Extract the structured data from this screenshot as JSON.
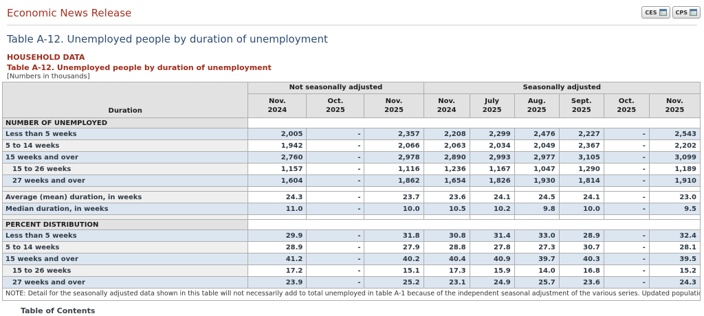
{
  "header": {
    "site_title": "Economic News Release",
    "buttons": [
      {
        "label": "CES",
        "icon": "spreadsheet-icon"
      },
      {
        "label": "CPS",
        "icon": "spreadsheet-icon"
      }
    ]
  },
  "page_title": "Table A-12. Unemployed people by duration of unemployment",
  "subheader": {
    "section_label": "HOUSEHOLD DATA",
    "table_title": "Table A-12. Unemployed people by duration of unemployment",
    "units_note": "[Numbers in thousands]"
  },
  "table": {
    "stub_header": "Duration",
    "groups": [
      {
        "label": "Not seasonally adjusted",
        "span": 3
      },
      {
        "label": "Seasonally adjusted",
        "span": 6
      }
    ],
    "columns": [
      {
        "month": "Nov.",
        "year": "2024"
      },
      {
        "month": "Oct.",
        "year": "2025"
      },
      {
        "month": "Nov.",
        "year": "2025"
      },
      {
        "month": "Nov.",
        "year": "2024"
      },
      {
        "month": "July",
        "year": "2025"
      },
      {
        "month": "Aug.",
        "year": "2025"
      },
      {
        "month": "Sept.",
        "year": "2025"
      },
      {
        "month": "Oct.",
        "year": "2025"
      },
      {
        "month": "Nov.",
        "year": "2025"
      }
    ],
    "rows": [
      {
        "type": "section",
        "label": "NUMBER OF UNEMPLOYED"
      },
      {
        "type": "data",
        "label": "Less than 5 weeks",
        "indent": 0,
        "values": [
          "2,005",
          "-",
          "2,357",
          "2,208",
          "2,299",
          "2,476",
          "2,227",
          "-",
          "2,543"
        ]
      },
      {
        "type": "data",
        "label": "5 to 14 weeks",
        "indent": 0,
        "values": [
          "1,942",
          "-",
          "2,066",
          "2,063",
          "2,034",
          "2,049",
          "2,367",
          "-",
          "2,202"
        ]
      },
      {
        "type": "data",
        "label": "15 weeks and over",
        "indent": 0,
        "values": [
          "2,760",
          "-",
          "2,978",
          "2,890",
          "2,993",
          "2,977",
          "3,105",
          "-",
          "3,099"
        ]
      },
      {
        "type": "data",
        "label": "15 to 26 weeks",
        "indent": 1,
        "values": [
          "1,157",
          "-",
          "1,116",
          "1,236",
          "1,167",
          "1,047",
          "1,290",
          "-",
          "1,189"
        ]
      },
      {
        "type": "data",
        "label": "27 weeks and over",
        "indent": 1,
        "values": [
          "1,604",
          "-",
          "1,862",
          "1,654",
          "1,826",
          "1,930",
          "1,814",
          "-",
          "1,910"
        ]
      },
      {
        "type": "spacer"
      },
      {
        "type": "data",
        "label": "Average (mean) duration, in weeks",
        "indent": 0,
        "values": [
          "24.3",
          "-",
          "23.7",
          "23.6",
          "24.1",
          "24.5",
          "24.1",
          "-",
          "23.0"
        ]
      },
      {
        "type": "data",
        "label": "Median duration, in weeks",
        "indent": 0,
        "values": [
          "11.0",
          "-",
          "10.0",
          "10.5",
          "10.2",
          "9.8",
          "10.0",
          "-",
          "9.5"
        ]
      },
      {
        "type": "spacer"
      },
      {
        "type": "section",
        "label": "PERCENT DISTRIBUTION"
      },
      {
        "type": "data",
        "label": "Less than 5 weeks",
        "indent": 0,
        "values": [
          "29.9",
          "-",
          "31.8",
          "30.8",
          "31.4",
          "33.0",
          "28.9",
          "-",
          "32.4"
        ]
      },
      {
        "type": "data",
        "label": "5 to 14 weeks",
        "indent": 0,
        "values": [
          "28.9",
          "-",
          "27.9",
          "28.8",
          "27.8",
          "27.3",
          "30.7",
          "-",
          "28.1"
        ]
      },
      {
        "type": "data",
        "label": "15 weeks and over",
        "indent": 0,
        "values": [
          "41.2",
          "-",
          "40.2",
          "40.4",
          "40.9",
          "39.7",
          "40.3",
          "-",
          "39.5"
        ]
      },
      {
        "type": "data",
        "label": "15 to 26 weeks",
        "indent": 1,
        "values": [
          "17.2",
          "-",
          "15.1",
          "17.3",
          "15.9",
          "14.0",
          "16.8",
          "-",
          "15.2"
        ]
      },
      {
        "type": "data",
        "label": "27 weeks and over",
        "indent": 1,
        "values": [
          "23.9",
          "-",
          "25.2",
          "23.1",
          "24.9",
          "25.7",
          "23.6",
          "-",
          "24.3"
        ]
      }
    ],
    "note": "NOTE: Detail for the seasonally adjusted data shown in this table will not necessarily add to total unemployed in table A-1 because of the independent seasonal adjustment of the various series. Updated population controls are introduced annually with the release of January data. Data for October 2025 were not collected due to the federal government shutdown."
  },
  "footer": {
    "link_label": "Table of Contents"
  },
  "colors": {
    "accent_red": "#a93122",
    "dark_red": "#9e2b1a",
    "title_navy": "#2c4c74",
    "row_blue": "#dce6f1",
    "row_gray": "#efefef",
    "header_gray": "#e2e2e2"
  }
}
